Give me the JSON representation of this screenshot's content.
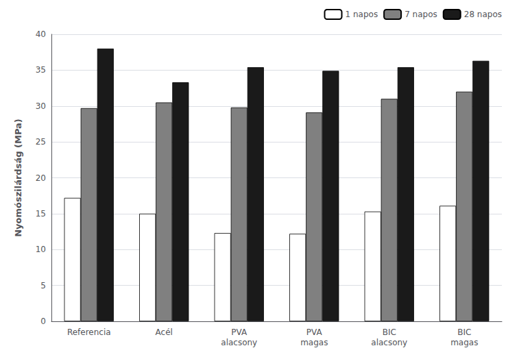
{
  "chart_data": {
    "type": "bar",
    "categories": [
      "Referencia",
      "Acél",
      "PVA\nalacsony",
      "PVA\nmagas",
      "BIC\nalacsony",
      "BIC\nmagas"
    ],
    "series": [
      {
        "name": "1 napos",
        "color": "#ffffff",
        "values": [
          17.2,
          15.0,
          12.3,
          12.2,
          15.3,
          16.1
        ]
      },
      {
        "name": "7 napos",
        "color": "#808080",
        "values": [
          29.7,
          30.5,
          29.8,
          29.1,
          31.0,
          32.0
        ]
      },
      {
        "name": "28 napos",
        "color": "#1a1a1a",
        "values": [
          38.0,
          33.3,
          35.4,
          34.9,
          35.4,
          36.3
        ]
      }
    ],
    "ylabel": "Nyomószilárdság (MPa)",
    "ylim": [
      0,
      40
    ],
    "yticks": [
      0,
      5,
      10,
      15,
      20,
      25,
      30,
      35,
      40
    ],
    "grid": true,
    "legend": "upper right"
  }
}
